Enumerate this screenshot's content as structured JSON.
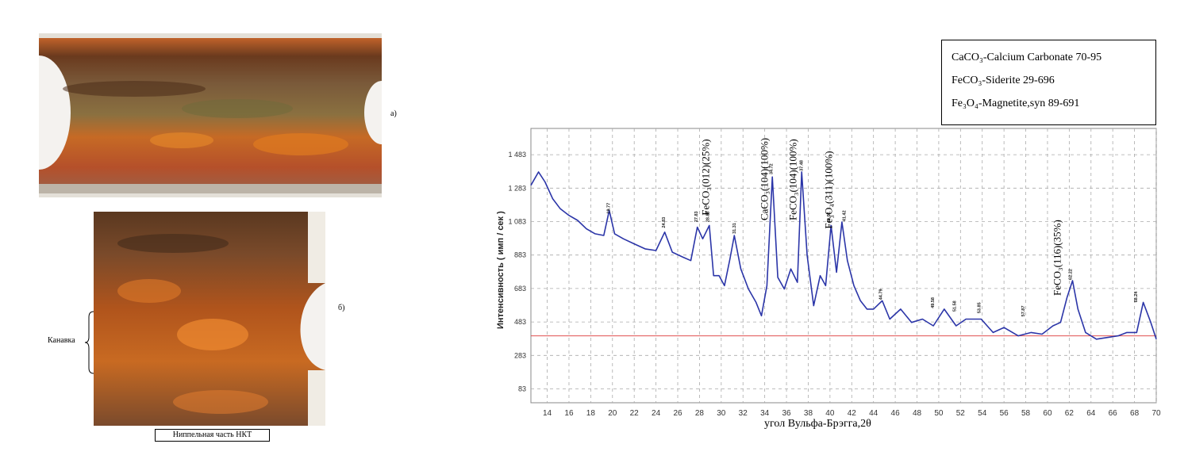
{
  "panels": {
    "a_label": "а)",
    "b_label": "б)",
    "groove_label": "Канавка",
    "caption": "Ниппельная часть НКТ"
  },
  "legend": [
    {
      "formula": "CaCO₃",
      "text": "-Calcium Carbonate 70-95"
    },
    {
      "formula": "FeCO₃",
      "text": "-Siderite 29-696"
    },
    {
      "formula": "Fe₃O₄",
      "text": "-Magnetite,syn 89-691"
    }
  ],
  "chart_data": {
    "type": "line",
    "xlabel": "угол Вульфа-Брэгга,2θ",
    "ylabel": "Интенсивность ( имп / сек )",
    "xlim": [
      12.5,
      70
    ],
    "ylim": [
      0,
      1640
    ],
    "x_ticks": [
      14,
      16,
      18,
      20,
      22,
      24,
      26,
      28,
      30,
      32,
      34,
      36,
      38,
      40,
      42,
      44,
      46,
      48,
      50,
      52,
      54,
      56,
      58,
      60,
      62,
      64,
      66,
      68,
      70
    ],
    "x_tick_labels": [
      "14",
      "16",
      "18",
      "20",
      "22",
      "24",
      "26",
      "28",
      "30",
      "32",
      "34",
      "36",
      "38",
      "40",
      "42",
      "44",
      "46",
      "48",
      "50",
      "52",
      "54",
      "56",
      "58",
      "60",
      "62",
      "64",
      "66",
      "68",
      "70"
    ],
    "y_ticks": [
      83,
      283,
      483,
      683,
      883,
      1083,
      1283,
      1483
    ],
    "y_tick_labels": [
      "83",
      "283",
      "483",
      "683",
      "883",
      "1 083",
      "1 283",
      "1 483"
    ],
    "reference_line": 400,
    "series": [
      {
        "color": "#2b35a8",
        "x": [
          12.5,
          13.2,
          13.8,
          14.5,
          15.2,
          16,
          16.8,
          17.6,
          18.4,
          19.2,
          19.7,
          20.2,
          21,
          22,
          23,
          24,
          24.8,
          25.5,
          26.5,
          27.2,
          27.8,
          28.3,
          28.9,
          29.3,
          29.8,
          30.3,
          30.8,
          31.2,
          31.8,
          32.5,
          33.2,
          33.7,
          34.2,
          34.7,
          35.2,
          35.8,
          36.4,
          37,
          37.4,
          37.9,
          38.5,
          39.1,
          39.6,
          40.1,
          40.6,
          41.1,
          41.6,
          42.2,
          42.8,
          43.4,
          44,
          44.8,
          45.5,
          46.5,
          47.5,
          48.5,
          49.5,
          50.5,
          51.6,
          52.5,
          53.9,
          55,
          56,
          57.3,
          58.5,
          59.5,
          60.5,
          61.2,
          61.8,
          62.3,
          62.8,
          63.5,
          64.5,
          65.5,
          66.5,
          67.3,
          68.2,
          68.8,
          69.5,
          70
        ],
        "y": [
          1300,
          1380,
          1320,
          1220,
          1160,
          1120,
          1090,
          1040,
          1010,
          1000,
          1150,
          1010,
          980,
          950,
          920,
          910,
          1020,
          900,
          870,
          850,
          1050,
          980,
          1060,
          760,
          760,
          700,
          860,
          1000,
          800,
          680,
          600,
          520,
          700,
          1350,
          750,
          680,
          800,
          720,
          1380,
          880,
          580,
          760,
          700,
          1060,
          780,
          1080,
          850,
          700,
          610,
          560,
          560,
          610,
          500,
          560,
          480,
          500,
          460,
          560,
          460,
          500,
          500,
          420,
          450,
          400,
          420,
          410,
          460,
          480,
          630,
          730,
          560,
          420,
          380,
          390,
          400,
          420,
          420,
          600,
          480,
          380
        ]
      }
    ],
    "peaks": [
      {
        "x": 19.77,
        "label": "19.77",
        "y": 1130
      },
      {
        "x": 24.83,
        "label": "24.83",
        "y": 1045
      },
      {
        "x": 27.83,
        "label": "27.83",
        "y": 1080
      },
      {
        "x": 28.88,
        "label": "28.88",
        "y": 1080
      },
      {
        "x": 31.31,
        "label": "31.31",
        "y": 1010
      },
      {
        "x": 34.72,
        "label": "34.72",
        "y": 1365
      },
      {
        "x": 37.48,
        "label": "37.48",
        "y": 1385
      },
      {
        "x": 40.02,
        "label": "40.02",
        "y": 1075
      },
      {
        "x": 41.42,
        "label": "41.42",
        "y": 1085
      },
      {
        "x": 44.79,
        "label": "44.79",
        "y": 615
      },
      {
        "x": 49.58,
        "label": "49.58",
        "y": 565
      },
      {
        "x": 51.58,
        "label": "51.58",
        "y": 545
      },
      {
        "x": 53.85,
        "label": "53.85",
        "y": 535
      },
      {
        "x": 57.87,
        "label": "57.87",
        "y": 515
      },
      {
        "x": 62.22,
        "label": "62.22",
        "y": 735
      },
      {
        "x": 68.24,
        "label": "68.24",
        "y": 600
      }
    ],
    "annotations": [
      {
        "x": 28.9,
        "y": 1120,
        "text": "FeCO₃(012)(25%)"
      },
      {
        "x": 34.3,
        "y": 1090,
        "text": "CaCO₃(104)(100%)"
      },
      {
        "x": 36.9,
        "y": 1090,
        "text": "FeCO₃(104)(100%)"
      },
      {
        "x": 40.2,
        "y": 1040,
        "text": "Fe₃O₄(311)(100%)"
      },
      {
        "x": 61.2,
        "y": 640,
        "text": "FeCO₃(116)(35%)"
      }
    ]
  }
}
